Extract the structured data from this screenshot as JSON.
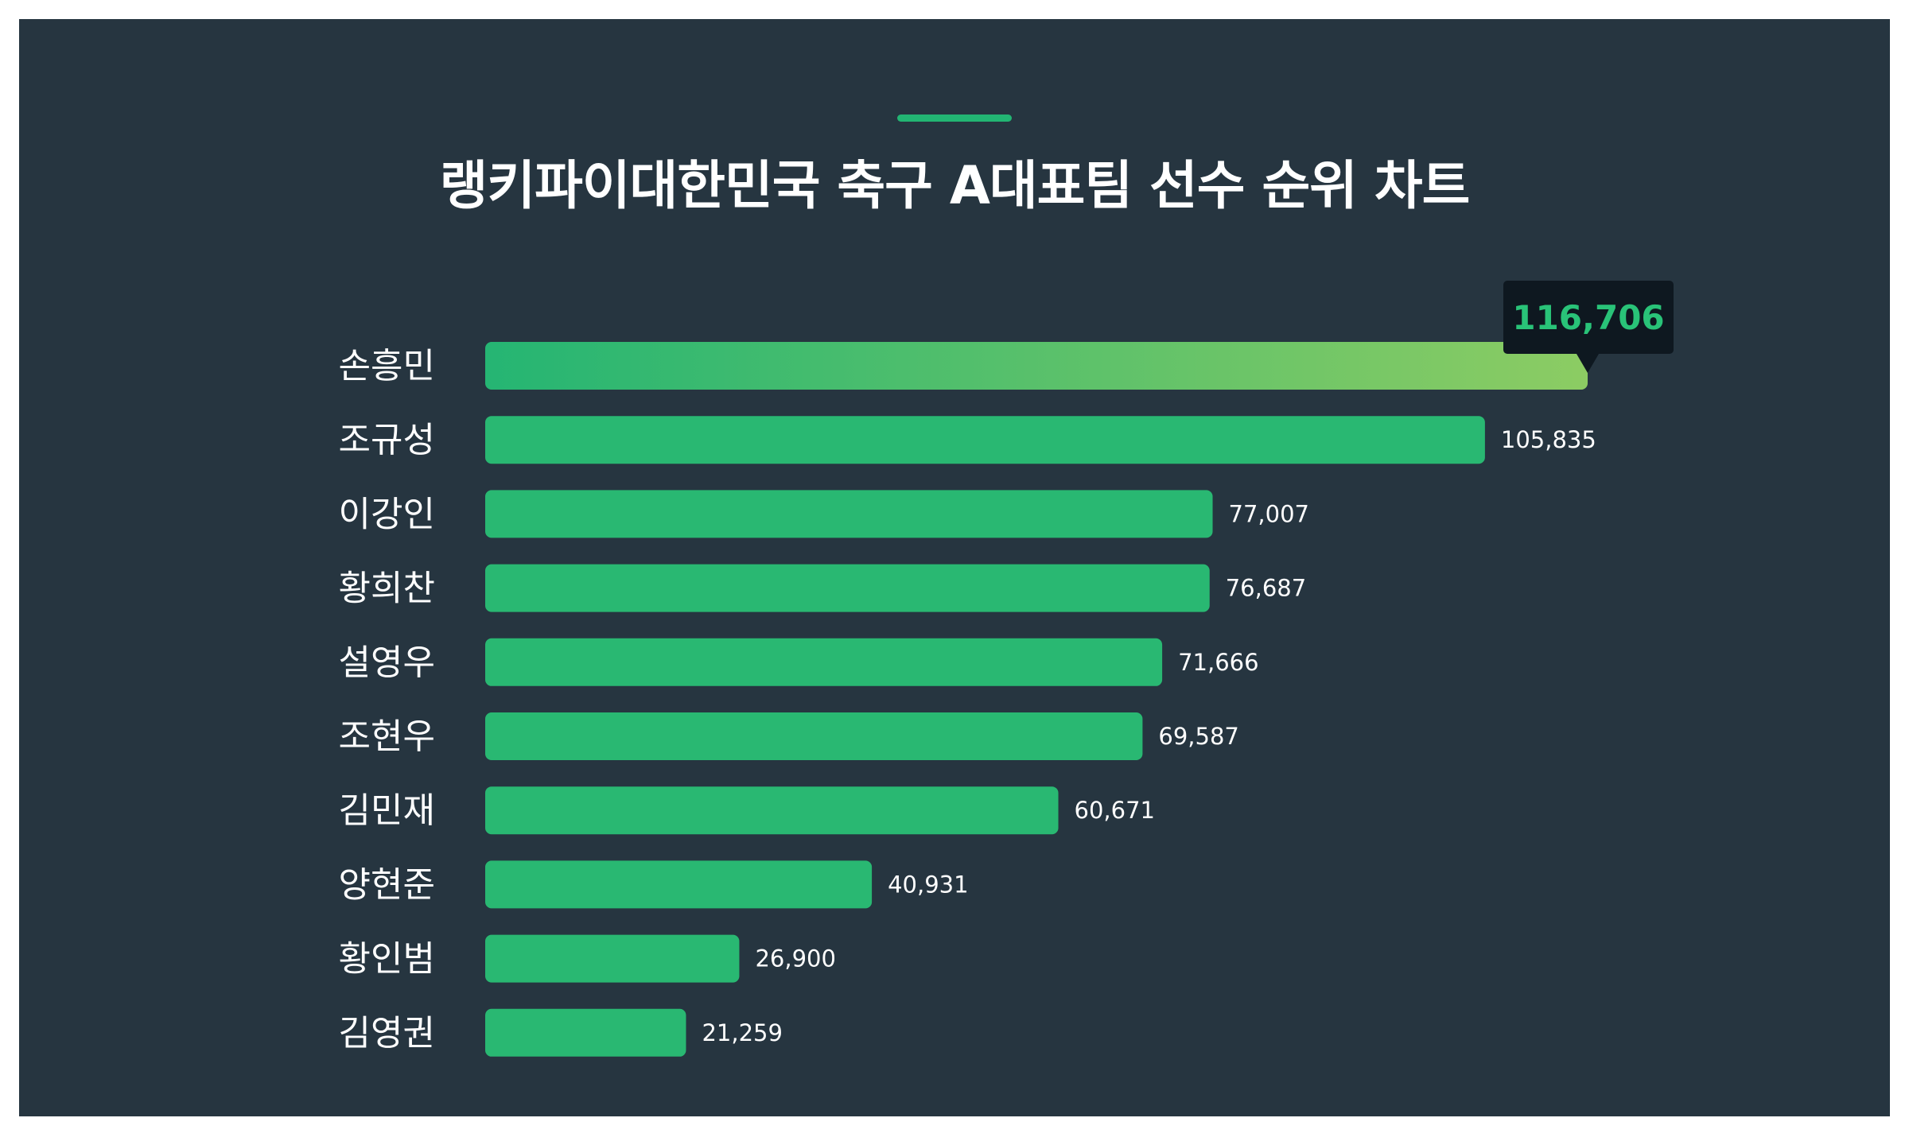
{
  "colors": {
    "background": "#263540",
    "bar": "#29b872",
    "accent": "#22b573",
    "top_gradient_start": "#25b573",
    "top_gradient_end": "#8ccc63",
    "tooltip_bg": "#0e1820",
    "tooltip_text": "#29c378",
    "text": "#ffffff"
  },
  "chart_data": {
    "type": "bar",
    "orientation": "horizontal",
    "title": "랭키파이대한민국 축구 A대표팀 선수 순위 차트",
    "categories": [
      "손흥민",
      "조규성",
      "이강인",
      "황희찬",
      "설영우",
      "조현우",
      "김민재",
      "양현준",
      "황인범",
      "김영권"
    ],
    "values": [
      116706,
      105835,
      77007,
      76687,
      71666,
      69587,
      60671,
      40931,
      26900,
      21259
    ],
    "value_labels": [
      "116,706",
      "105,835",
      "77,007",
      "76,687",
      "71,666",
      "69,587",
      "60,671",
      "40,931",
      "26,900",
      "21,259"
    ],
    "highlight_index": 0,
    "xlim": [
      0,
      116706
    ],
    "grid": false,
    "legend": "none"
  }
}
